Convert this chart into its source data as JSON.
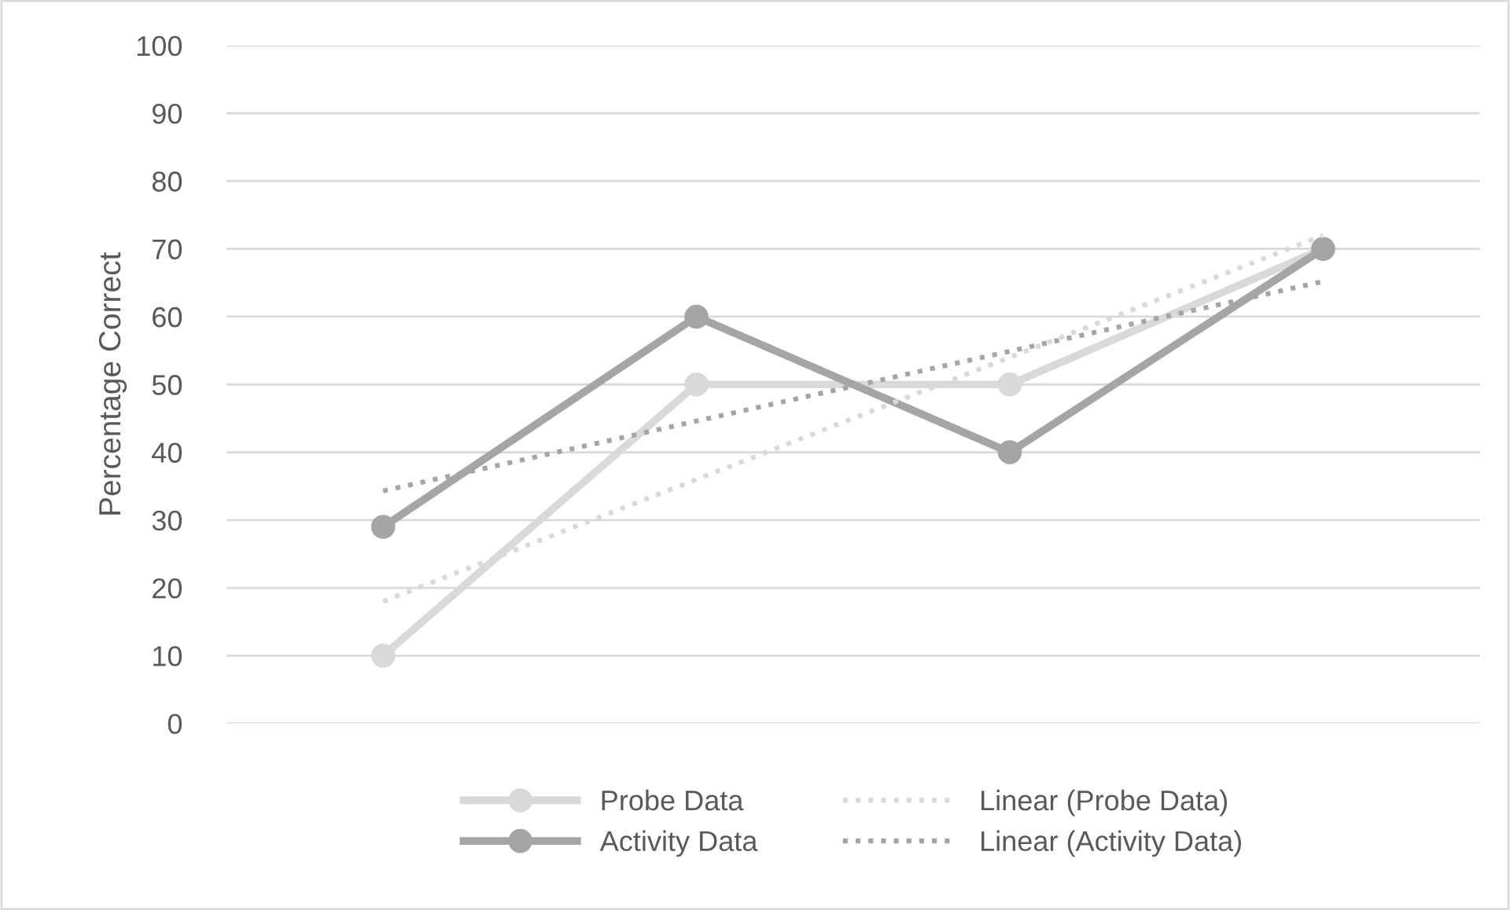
{
  "chart_data": {
    "type": "line",
    "ylabel": "Percentage Correct",
    "categories": [
      null,
      null,
      null,
      null
    ],
    "series": [
      {
        "name": "Probe Data",
        "color": "#d9d9d9",
        "values": [
          10,
          50,
          50,
          70
        ],
        "marker": "circle",
        "line_style": "solid"
      },
      {
        "name": "Activity Data",
        "color": "#a5a5a5",
        "values": [
          29,
          60,
          40,
          70
        ],
        "marker": "circle",
        "line_style": "solid"
      },
      {
        "name": "Linear (Probe Data)",
        "color": "#d9d9d9",
        "values": [
          18,
          36,
          54,
          72
        ],
        "marker": "none",
        "line_style": "dotted"
      },
      {
        "name": "Linear (Activity Data)",
        "color": "#a5a5a5",
        "values": [
          34.3,
          44.6,
          54.9,
          65.2
        ],
        "marker": "none",
        "line_style": "dotted"
      }
    ],
    "ylim": [
      0,
      100
    ],
    "yticks": [
      0,
      10,
      20,
      30,
      40,
      50,
      60,
      70,
      80,
      90,
      100
    ],
    "grid": "y",
    "legend": "bottom",
    "tick_labels": "y"
  }
}
